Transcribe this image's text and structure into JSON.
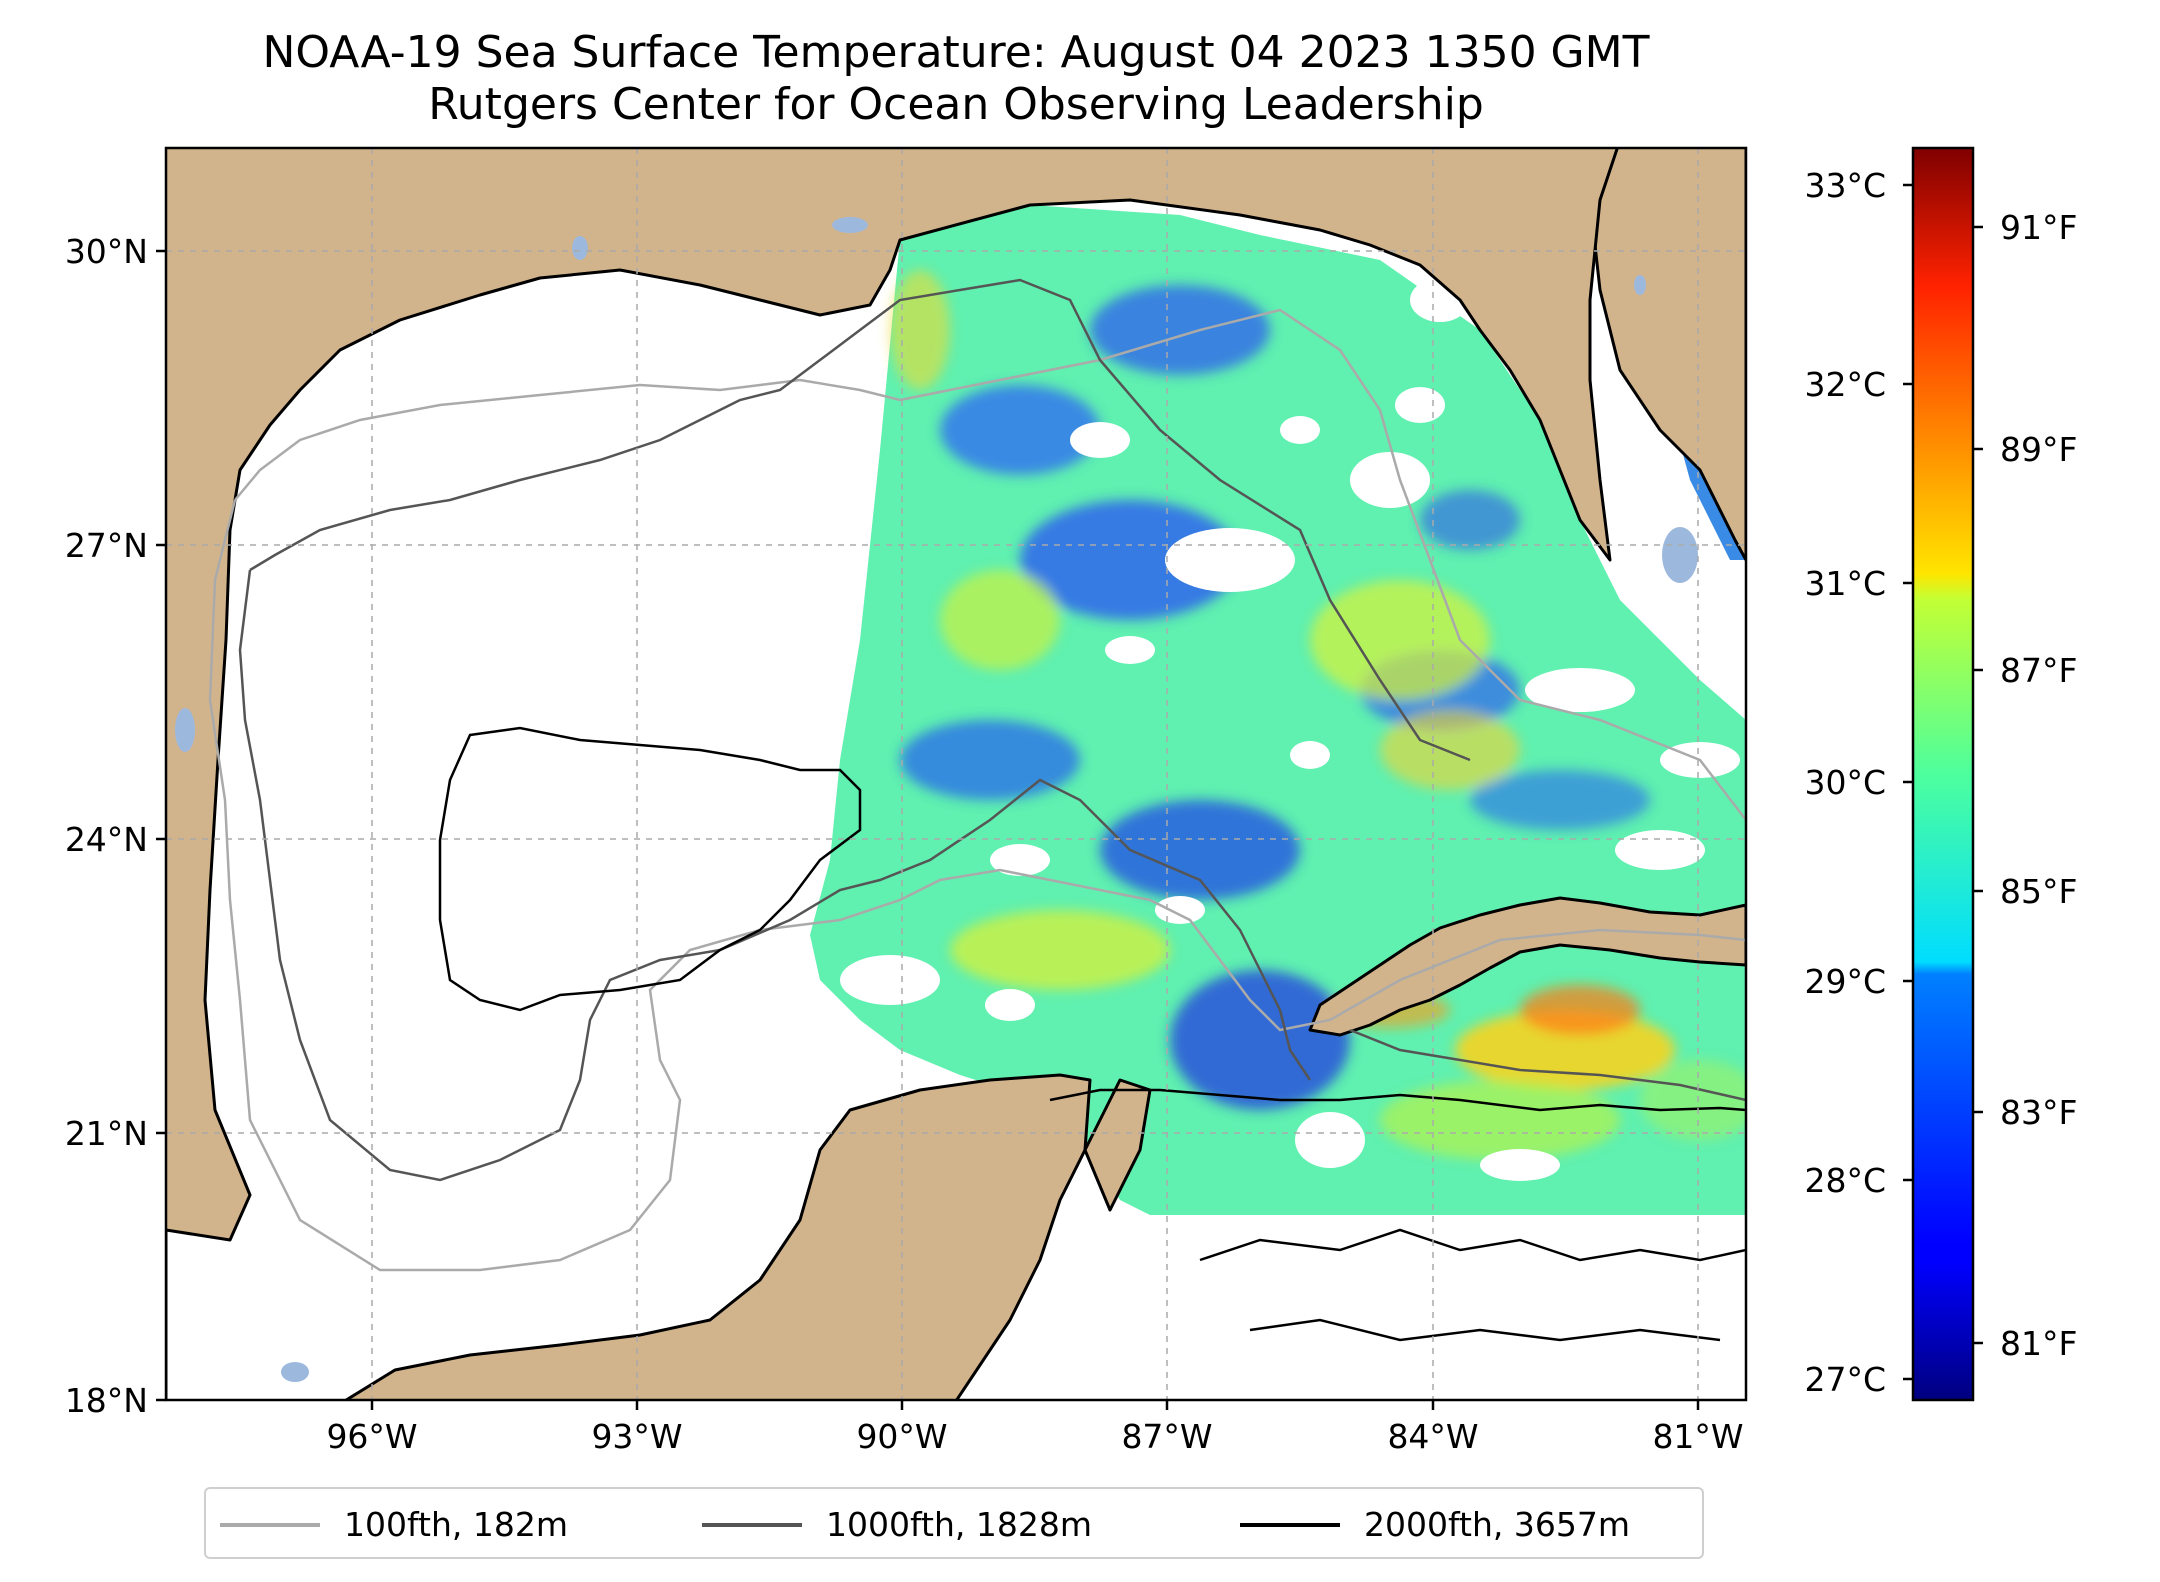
{
  "title": "NOAA-19 Sea Surface Temperature: August 04 2023 1350 GMT",
  "subtitle": "Rutgers Center for Ocean Observing Leadership",
  "map": {
    "extent": {
      "lon_min": -98.0,
      "lon_max": -80.3,
      "lat_min": 18.0,
      "lat_max": 31.0
    },
    "lat_ticks": [
      {
        "value": 30,
        "label": "30°N"
      },
      {
        "value": 27,
        "label": "27°N"
      },
      {
        "value": 24,
        "label": "24°N"
      },
      {
        "value": 21,
        "label": "21°N"
      },
      {
        "value": 18,
        "label": "18°N"
      }
    ],
    "lon_ticks": [
      {
        "value": -96,
        "label": "96°W"
      },
      {
        "value": -93,
        "label": "93°W"
      },
      {
        "value": -90,
        "label": "90°W"
      },
      {
        "value": -87,
        "label": "87°W"
      },
      {
        "value": -84,
        "label": "84°W"
      },
      {
        "value": -81,
        "label": "81°W"
      }
    ],
    "grid": true,
    "colors": {
      "land": "#d2b48c",
      "ocean_no_data": "#ffffff",
      "coastline": "#000000",
      "lakes": "#9db8dd",
      "grid": "#aaaaaa"
    }
  },
  "colorbar": {
    "colormap": "jet",
    "celsius_ticks": [
      {
        "value": 33,
        "label": "33°C"
      },
      {
        "value": 32,
        "label": "32°C"
      },
      {
        "value": 31,
        "label": "31°C"
      },
      {
        "value": 30,
        "label": "30°C"
      },
      {
        "value": 29,
        "label": "29°C"
      },
      {
        "value": 28,
        "label": "28°C"
      },
      {
        "value": 27,
        "label": "27°C"
      }
    ],
    "fahrenheit_ticks": [
      {
        "value": 91,
        "label": "91°F"
      },
      {
        "value": 89,
        "label": "89°F"
      },
      {
        "value": 87,
        "label": "87°F"
      },
      {
        "value": 85,
        "label": "85°F"
      },
      {
        "value": 83,
        "label": "83°F"
      },
      {
        "value": 81,
        "label": "81°F"
      }
    ]
  },
  "legend": {
    "placement": "below map",
    "items": [
      {
        "label": "100fth, 182m",
        "color": "#aaaaaa"
      },
      {
        "label": "1000fth, 1828m",
        "color": "#555555"
      },
      {
        "label": "2000fth, 3657m",
        "color": "#000000"
      }
    ]
  }
}
